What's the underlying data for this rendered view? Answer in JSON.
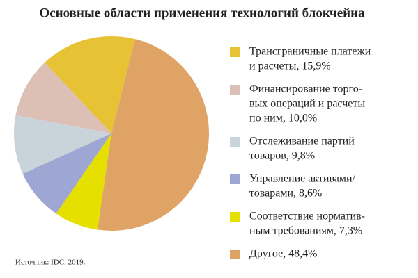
{
  "chart_data": {
    "type": "pie",
    "title": "Основные области применения технологий блокчейна",
    "categories": [
      [
        "Трансграничные платежи",
        "и расчеты, 15,9%"
      ],
      [
        "Финансирование торго-",
        "вых операций и расчеты",
        "по ним, 10,0%"
      ],
      [
        "Отслеживание партий",
        "товаров, 9,8%"
      ],
      [
        "Управление активами/",
        "товарами, 8,6%"
      ],
      [
        "Соответствие норматив-",
        "ным требованиям, 7,3%"
      ],
      [
        "Другое, 48,4%"
      ]
    ],
    "values": [
      15.9,
      10.0,
      9.8,
      8.6,
      7.3,
      48.4
    ],
    "colors": [
      "#e8c235",
      "#dcbfb5",
      "#c9d3da",
      "#9ea6d4",
      "#e5e000",
      "#e0a366"
    ],
    "source": "Источник: IDC, 2019."
  }
}
